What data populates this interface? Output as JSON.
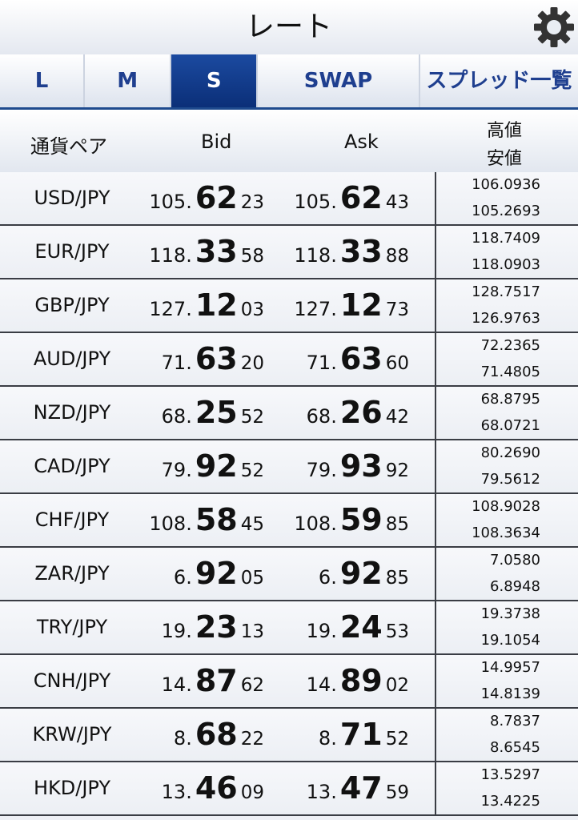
{
  "header": {
    "title": "レート"
  },
  "tabs": {
    "items": [
      "L",
      "M",
      "S",
      "SWAP",
      "スプレッド一覧"
    ],
    "active": 2
  },
  "table": {
    "columns": {
      "pair": "通貨ペア",
      "bid": "Bid",
      "ask": "Ask",
      "high": "高値",
      "low": "安値"
    },
    "rows": [
      {
        "pair": "USD/JPY",
        "bid": [
          "105.",
          "62",
          "23"
        ],
        "ask": [
          "105.",
          "62",
          "43"
        ],
        "high": "106.0936",
        "low": "105.2693"
      },
      {
        "pair": "EUR/JPY",
        "bid": [
          "118.",
          "33",
          "58"
        ],
        "ask": [
          "118.",
          "33",
          "88"
        ],
        "high": "118.7409",
        "low": "118.0903"
      },
      {
        "pair": "GBP/JPY",
        "bid": [
          "127.",
          "12",
          "03"
        ],
        "ask": [
          "127.",
          "12",
          "73"
        ],
        "high": "128.7517",
        "low": "126.9763"
      },
      {
        "pair": "AUD/JPY",
        "bid": [
          "71.",
          "63",
          "20"
        ],
        "ask": [
          "71.",
          "63",
          "60"
        ],
        "high": "72.2365",
        "low": "71.4805"
      },
      {
        "pair": "NZD/JPY",
        "bid": [
          "68.",
          "25",
          "52"
        ],
        "ask": [
          "68.",
          "26",
          "42"
        ],
        "high": "68.8795",
        "low": "68.0721"
      },
      {
        "pair": "CAD/JPY",
        "bid": [
          "79.",
          "92",
          "52"
        ],
        "ask": [
          "79.",
          "93",
          "92"
        ],
        "high": "80.2690",
        "low": "79.5612"
      },
      {
        "pair": "CHF/JPY",
        "bid": [
          "108.",
          "58",
          "45"
        ],
        "ask": [
          "108.",
          "59",
          "85"
        ],
        "high": "108.9028",
        "low": "108.3634"
      },
      {
        "pair": "ZAR/JPY",
        "bid": [
          "6.",
          "92",
          "05"
        ],
        "ask": [
          "6.",
          "92",
          "85"
        ],
        "high": "7.0580",
        "low": "6.8948"
      },
      {
        "pair": "TRY/JPY",
        "bid": [
          "19.",
          "23",
          "13"
        ],
        "ask": [
          "19.",
          "24",
          "53"
        ],
        "high": "19.3738",
        "low": "19.1054"
      },
      {
        "pair": "CNH/JPY",
        "bid": [
          "14.",
          "87",
          "62"
        ],
        "ask": [
          "14.",
          "89",
          "02"
        ],
        "high": "14.9957",
        "low": "14.8139"
      },
      {
        "pair": "KRW/JPY",
        "bid": [
          "8.",
          "68",
          "22"
        ],
        "ask": [
          "8.",
          "71",
          "52"
        ],
        "high": "8.7837",
        "low": "8.6545"
      },
      {
        "pair": "HKD/JPY",
        "bid": [
          "13.",
          "46",
          "09"
        ],
        "ask": [
          "13.",
          "47",
          "59"
        ],
        "high": "13.5297",
        "low": "13.4225"
      }
    ]
  }
}
